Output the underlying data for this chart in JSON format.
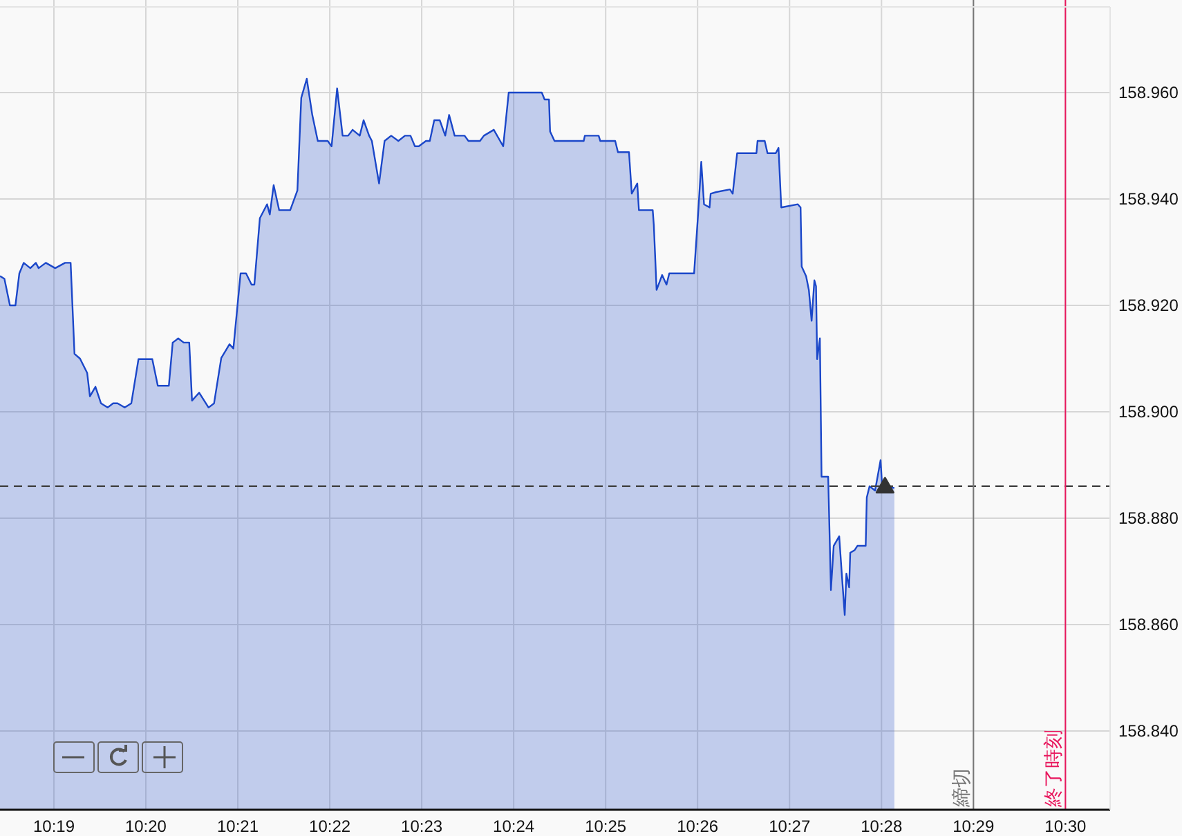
{
  "chart_data": {
    "type": "area",
    "grid": true,
    "xlim": [
      10.3069,
      10.5081
    ],
    "ylim": [
      158.8252,
      158.9761
    ],
    "xticks": [
      {
        "value": 10.31667,
        "label": "10:19"
      },
      {
        "value": 10.33333,
        "label": "10:20"
      },
      {
        "value": 10.35,
        "label": "10:21"
      },
      {
        "value": 10.36667,
        "label": "10:22"
      },
      {
        "value": 10.38333,
        "label": "10:23"
      },
      {
        "value": 10.4,
        "label": "10:24"
      },
      {
        "value": 10.41667,
        "label": "10:25"
      },
      {
        "value": 10.43333,
        "label": "10:26"
      },
      {
        "value": 10.45,
        "label": "10:27"
      },
      {
        "value": 10.46667,
        "label": "10:28"
      },
      {
        "value": 10.48333,
        "label": "10:29"
      },
      {
        "value": 10.5,
        "label": "10:30"
      }
    ],
    "yticks": [
      {
        "value": 158.84,
        "label": "158.840"
      },
      {
        "value": 158.86,
        "label": "158.860"
      },
      {
        "value": 158.88,
        "label": "158.880"
      },
      {
        "value": 158.9,
        "label": "158.900"
      },
      {
        "value": 158.92,
        "label": "158.920"
      },
      {
        "value": 158.94,
        "label": "158.940"
      },
      {
        "value": 158.96,
        "label": "158.960"
      }
    ],
    "series": [
      {
        "color": "#1b47c9",
        "x": [
          10.3069,
          10.3077,
          10.3087,
          10.3097,
          10.3104,
          10.3112,
          10.3124,
          10.3134,
          10.3139,
          10.3152,
          10.3169,
          10.3187,
          10.3197,
          10.3204,
          10.3214,
          10.3227,
          10.3232,
          10.3242,
          10.3252,
          10.3264,
          10.3274,
          10.3282,
          10.3295,
          10.3307,
          10.332,
          10.3345,
          10.3355,
          10.3375,
          10.3382,
          10.3392,
          10.3402,
          10.3412,
          10.3417,
          10.343,
          10.3447,
          10.3457,
          10.347,
          10.3485,
          10.3492,
          10.3505,
          10.3515,
          10.3525,
          10.353,
          10.354,
          10.3553,
          10.3558,
          10.3565,
          10.3575,
          10.3595,
          10.3608,
          10.3615,
          10.3625,
          10.3635,
          10.3645,
          10.3663,
          10.367,
          10.368,
          10.369,
          10.37,
          10.3708,
          10.3721,
          10.3728,
          10.3738,
          10.3743,
          10.3756,
          10.3766,
          10.3778,
          10.3791,
          10.3803,
          10.3813,
          10.3821,
          10.3828,
          10.3841,
          10.3848,
          10.3856,
          10.3866,
          10.3876,
          10.3883,
          10.3893,
          10.3911,
          10.3918,
          10.3939,
          10.3946,
          10.3964,
          10.3981,
          10.3991,
          10.4051,
          10.4056,
          10.4064,
          10.4066,
          10.4074,
          10.4079,
          10.4127,
          10.4129,
          10.4154,
          10.4157,
          10.4184,
          10.4189,
          10.4209,
          10.4214,
          10.4224,
          10.4227,
          10.4252,
          10.4254,
          10.4259,
          10.4269,
          10.4277,
          10.4282,
          10.4327,
          10.4335,
          10.434,
          10.4345,
          10.4355,
          10.4357,
          10.4367,
          10.4392,
          10.4397,
          10.4405,
          10.444,
          10.4442,
          10.4455,
          10.446,
          10.4475,
          10.448,
          10.4485,
          10.4515,
          10.452,
          10.4522,
          10.453,
          10.4535,
          10.454,
          10.4545,
          10.4548,
          10.455,
          10.4555,
          10.4558,
          10.457,
          10.4575,
          10.458,
          10.459,
          10.4595,
          10.46,
          10.4603,
          10.4608,
          10.461,
          10.4618,
          10.4623,
          10.4638,
          10.464,
          10.4645,
          10.4655,
          10.4665,
          10.4668,
          10.4685,
          10.469
        ],
        "values": [
          158.9255,
          158.925,
          158.92,
          158.92,
          158.926,
          158.928,
          158.927,
          158.928,
          158.927,
          158.928,
          158.927,
          158.928,
          158.928,
          158.9109,
          158.91,
          158.9073,
          158.9029,
          158.9047,
          158.9016,
          158.9008,
          158.9016,
          158.9016,
          158.9008,
          158.9016,
          158.9099,
          158.9099,
          158.9049,
          158.9049,
          158.913,
          158.9138,
          158.913,
          158.913,
          158.9021,
          158.9036,
          158.9008,
          158.9016,
          158.9101,
          158.9127,
          158.9119,
          158.926,
          158.926,
          158.9239,
          158.9239,
          158.9364,
          158.939,
          158.9371,
          158.9426,
          158.9379,
          158.9379,
          158.9416,
          158.959,
          158.9626,
          158.9558,
          158.9509,
          158.9509,
          158.9499,
          158.9608,
          158.9519,
          158.9519,
          158.953,
          158.9519,
          158.9548,
          158.9519,
          158.9509,
          158.9429,
          158.9509,
          158.9519,
          158.9509,
          158.9519,
          158.9519,
          158.9499,
          158.9499,
          158.9509,
          158.9509,
          158.9548,
          158.9548,
          158.9519,
          158.9558,
          158.9519,
          158.9519,
          158.9509,
          158.9509,
          158.9519,
          158.953,
          158.9499,
          158.96,
          158.96,
          158.9587,
          158.9587,
          158.9527,
          158.9509,
          158.9509,
          158.9509,
          158.9519,
          158.9519,
          158.9509,
          158.9509,
          158.9488,
          158.9488,
          158.941,
          158.9429,
          158.9379,
          158.9379,
          158.9351,
          158.9229,
          158.9257,
          158.9239,
          158.926,
          158.926,
          158.9384,
          158.947,
          158.939,
          158.9384,
          158.941,
          158.9413,
          158.9418,
          158.941,
          158.9486,
          158.9486,
          158.9509,
          158.9509,
          158.9486,
          158.9486,
          158.9496,
          158.9384,
          158.939,
          158.9384,
          158.9273,
          158.9255,
          158.9229,
          158.9171,
          158.9247,
          158.9236,
          158.9099,
          158.9138,
          158.8878,
          158.8878,
          158.8665,
          158.8748,
          158.8766,
          158.8691,
          158.8618,
          158.8696,
          158.867,
          158.8735,
          158.874,
          158.8748,
          158.8748,
          158.8839,
          158.886,
          158.8852,
          158.8909,
          158.8857,
          158.8857,
          158.8857
        ]
      },
      {
        "type": "scatter",
        "marker": "triangle",
        "color": "#333333",
        "x": [
          10.4673
        ],
        "values": [
          158.886
        ]
      }
    ],
    "ref_lines": [
      {
        "axis": "y",
        "value": 158.886,
        "color": "#444444",
        "line_style": "dashed"
      },
      {
        "axis": "x",
        "value": 10.48333,
        "label": "締切",
        "color": "#777777",
        "line_style": "solid"
      },
      {
        "axis": "x",
        "value": 10.5,
        "label": "終了時刻",
        "color": "#e8175d",
        "line_style": "solid"
      }
    ]
  }
}
